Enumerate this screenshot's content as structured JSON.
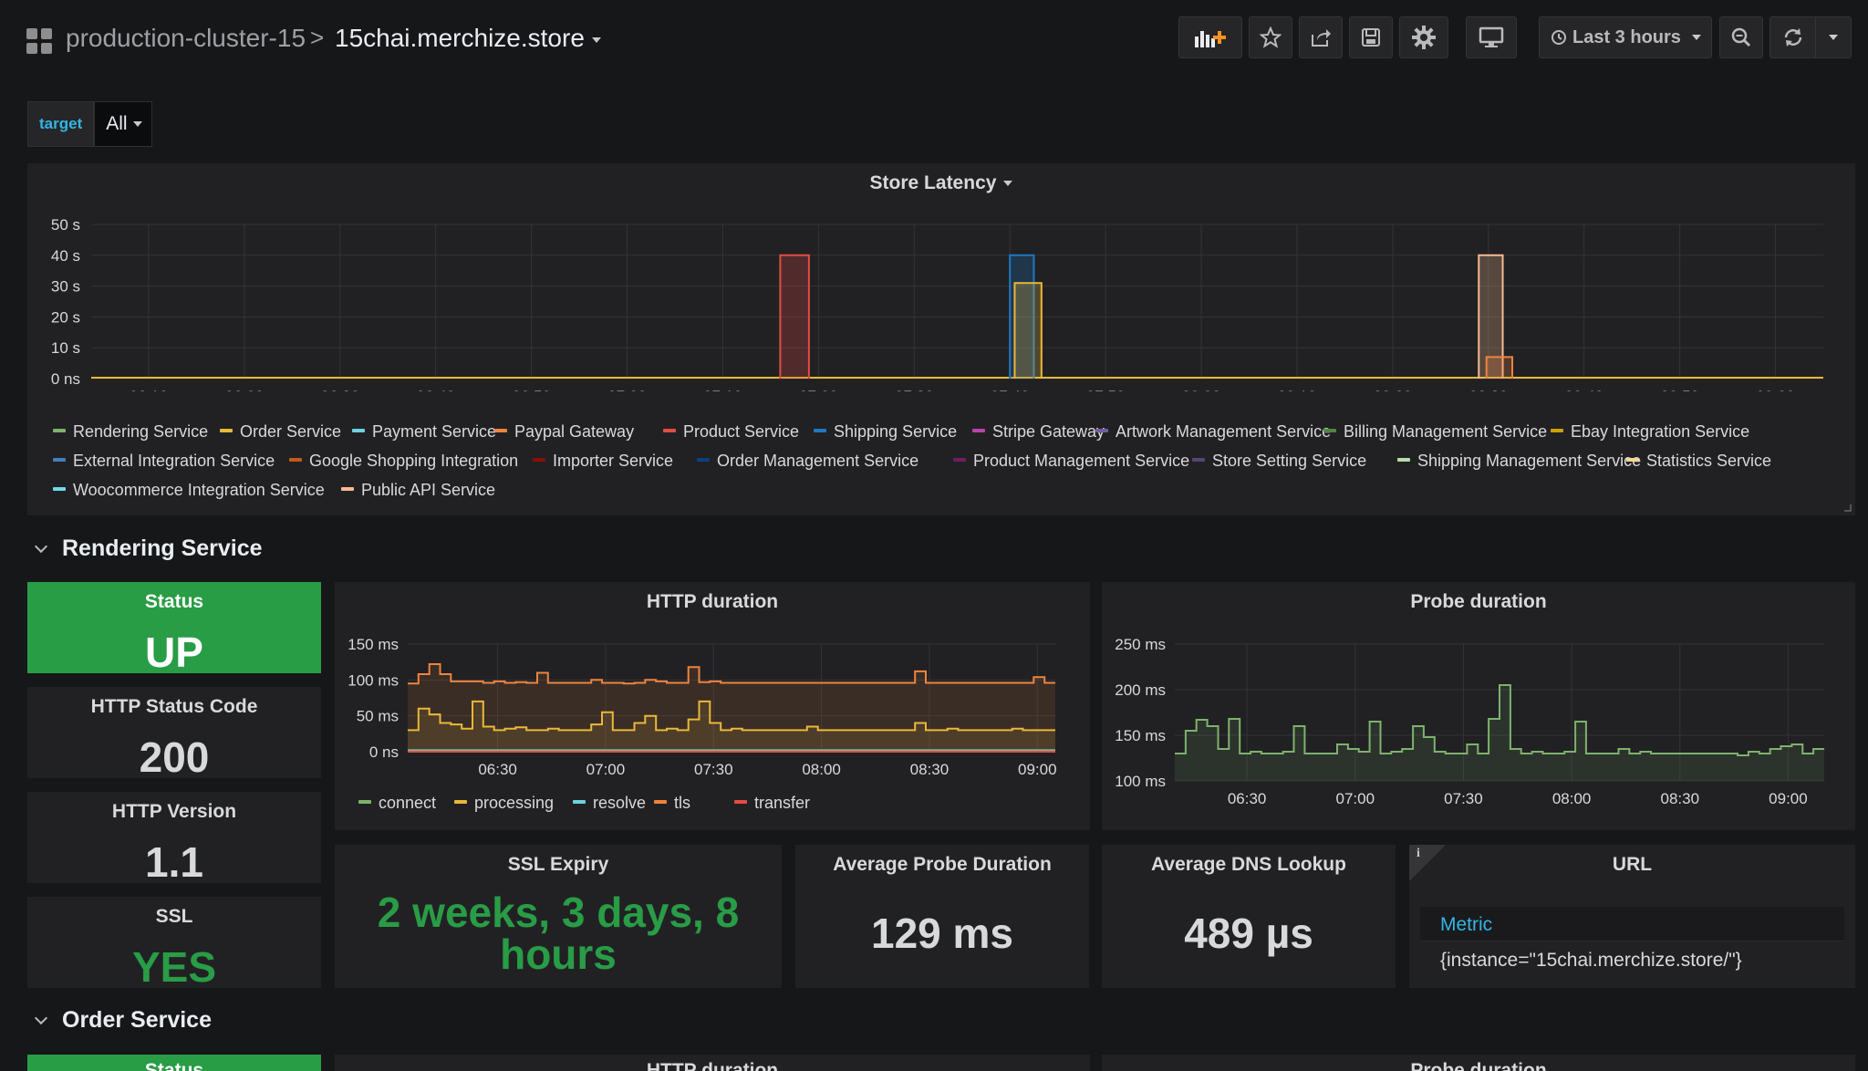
{
  "breadcrumb": {
    "folder": "production-cluster-15",
    "separator": ">",
    "dashboard": "15chai.merchize.store"
  },
  "toolbar": {
    "time_range": "Last 3 hours"
  },
  "variables": [
    {
      "label": "target",
      "value": "All"
    }
  ],
  "store_latency": {
    "title": "Store Latency",
    "legend": [
      "Rendering Service",
      "Order Service",
      "Payment Service",
      "Paypal Gateway",
      "Product Service",
      "Shipping Service",
      "Stripe Gateway",
      "Artwork Management Service",
      "Billing Management Service",
      "Ebay Integration Service",
      "External Integration Service",
      "Google Shopping Integration",
      "Importer Service",
      "Order Management Service",
      "Product Management Service",
      "Store Setting Service",
      "Shipping Management Service",
      "Statistics Service",
      "Woocommerce Integration Service",
      "Public API Service"
    ],
    "legend_colors": [
      "#7eb26d",
      "#eab839",
      "#6ed0e0",
      "#ef843c",
      "#e24d42",
      "#1f78c1",
      "#ba43a9",
      "#705da0",
      "#508642",
      "#cca300",
      "#447ebc",
      "#c15c17",
      "#890f02",
      "#0a437c",
      "#6d1f62",
      "#584477",
      "#b7dbab",
      "#f4d598",
      "#70dbed",
      "#f9ba8f"
    ]
  },
  "sections": [
    {
      "title": "Rendering Service",
      "status": {
        "title": "Status",
        "value": "UP"
      },
      "http_status": {
        "title": "HTTP Status Code",
        "value": "200"
      },
      "http_version": {
        "title": "HTTP Version",
        "value": "1.1"
      },
      "ssl": {
        "title": "SSL",
        "value": "YES"
      },
      "http_duration": {
        "title": "HTTP duration",
        "legend": [
          "connect",
          "processing",
          "resolve",
          "tls",
          "transfer"
        ],
        "legend_colors": [
          "#7eb26d",
          "#eab839",
          "#6ed0e0",
          "#ef843c",
          "#e24d42"
        ]
      },
      "probe_duration": {
        "title": "Probe duration"
      },
      "ssl_expiry": {
        "title": "SSL Expiry",
        "value_line1": "2 weeks, 3 days, 8",
        "value_line2": "hours"
      },
      "avg_probe": {
        "title": "Average Probe Duration",
        "value": "129 ms"
      },
      "avg_dns": {
        "title": "Average DNS Lookup",
        "value": "489 µs"
      },
      "url": {
        "title": "URL",
        "column": "Metric",
        "value": "{instance=\"15chai.merchize.store/\"}",
        "info": "i"
      }
    },
    {
      "title": "Order Service",
      "status": {
        "title": "Status"
      },
      "http_duration": {
        "title": "HTTP duration"
      },
      "probe_duration": {
        "title": "Probe duration"
      }
    }
  ],
  "chart_data": [
    {
      "type": "line",
      "title": "Store Latency",
      "ylabel": "",
      "ylim": [
        0,
        50
      ],
      "yticks": [
        "0 ns",
        "10 s",
        "20 s",
        "30 s",
        "40 s",
        "50 s"
      ],
      "xticks": [
        "06:10",
        "06:20",
        "06:30",
        "06:40",
        "06:50",
        "07:00",
        "07:10",
        "07:20",
        "07:30",
        "07:40",
        "07:50",
        "08:00",
        "08:10",
        "08:20",
        "08:30",
        "08:40",
        "08:50",
        "09:00"
      ],
      "series": [
        {
          "name": "Product Service",
          "x": [
            "07:16",
            "07:16",
            "07:19",
            "07:19"
          ],
          "values": [
            0,
            40,
            40,
            0
          ]
        },
        {
          "name": "Shipping Service",
          "x": [
            "07:40",
            "07:40",
            "07:42.5",
            "07:42.5"
          ],
          "values": [
            0,
            40,
            40,
            0
          ]
        },
        {
          "name": "Order Service",
          "x": [
            "07:40.5",
            "07:40.5",
            "07:43.3",
            "07:43.3"
          ],
          "values": [
            0,
            31,
            31,
            0
          ]
        },
        {
          "name": "Public API Service",
          "x": [
            "08:29",
            "08:29",
            "08:31.5",
            "08:31.5"
          ],
          "values": [
            0,
            40,
            40,
            0
          ]
        },
        {
          "name": "Paypal Gateway",
          "x": [
            "08:29.8",
            "08:29.8",
            "08:32.5",
            "08:32.5"
          ],
          "values": [
            0,
            7,
            7,
            0
          ]
        }
      ]
    },
    {
      "type": "area",
      "title": "HTTP duration",
      "ylim": [
        0,
        150
      ],
      "yticks": [
        "0 ns",
        "50 ms",
        "100 ms",
        "150 ms"
      ],
      "xticks": [
        "06:30",
        "07:00",
        "07:30",
        "08:00",
        "08:30",
        "09:00"
      ],
      "x_range": [
        "06:05",
        "09:05"
      ],
      "series": [
        {
          "name": "connect",
          "values": [
            1,
            1,
            1,
            1,
            1,
            1,
            1,
            1,
            1,
            1,
            1,
            1,
            1,
            1,
            1,
            1,
            1,
            1,
            1,
            1,
            1,
            1,
            1,
            1,
            1,
            1,
            1,
            1,
            1,
            1,
            1,
            1,
            1,
            1,
            1,
            1,
            1,
            1,
            1,
            1,
            1,
            1,
            1,
            1,
            1,
            1,
            1,
            1,
            1,
            1,
            1,
            1,
            1,
            1,
            1,
            1,
            1,
            1,
            1,
            1
          ]
        },
        {
          "name": "processing",
          "values": [
            30,
            60,
            52,
            40,
            38,
            32,
            70,
            35,
            30,
            32,
            34,
            30,
            30,
            32,
            30,
            30,
            30,
            38,
            55,
            30,
            30,
            40,
            50,
            30,
            32,
            30,
            45,
            70,
            40,
            30,
            32,
            30,
            30,
            30,
            30,
            30,
            30,
            35,
            30,
            30,
            30,
            30,
            30,
            30,
            30,
            30,
            30,
            40,
            30,
            30,
            32,
            30,
            30,
            30,
            30,
            30,
            32,
            30,
            30,
            30
          ]
        },
        {
          "name": "resolve",
          "values": [
            2,
            2,
            2,
            2,
            2,
            2,
            2,
            2,
            2,
            2,
            2,
            2,
            2,
            2,
            2,
            2,
            2,
            2,
            2,
            2,
            2,
            2,
            2,
            2,
            2,
            2,
            2,
            2,
            2,
            2,
            2,
            2,
            2,
            2,
            2,
            2,
            2,
            2,
            2,
            2,
            2,
            2,
            2,
            2,
            2,
            2,
            2,
            2,
            2,
            2,
            2,
            2,
            2,
            2,
            2,
            2,
            2,
            2,
            2,
            2
          ]
        },
        {
          "name": "tls",
          "values": [
            95,
            108,
            122,
            108,
            98,
            98,
            98,
            96,
            98,
            96,
            97,
            96,
            110,
            96,
            96,
            96,
            96,
            100,
            96,
            96,
            95,
            96,
            100,
            98,
            96,
            96,
            118,
            97,
            98,
            96,
            96,
            96,
            96,
            96,
            96,
            96,
            96,
            96,
            96,
            96,
            96,
            96,
            96,
            96,
            96,
            96,
            96,
            112,
            96,
            96,
            96,
            96,
            96,
            96,
            96,
            96,
            96,
            96,
            104,
            96
          ]
        },
        {
          "name": "transfer",
          "values": [
            0,
            0,
            0,
            0,
            0,
            0,
            0,
            0,
            0,
            0,
            0,
            0,
            0,
            0,
            0,
            0,
            0,
            0,
            0,
            0,
            0,
            0,
            0,
            0,
            0,
            0,
            0,
            0,
            0,
            0,
            0,
            0,
            0,
            0,
            0,
            0,
            0,
            0,
            0,
            0,
            0,
            0,
            0,
            0,
            0,
            0,
            0,
            0,
            0,
            0,
            0,
            0,
            0,
            0,
            0,
            0,
            0,
            0,
            0,
            0
          ]
        }
      ]
    },
    {
      "type": "line",
      "title": "Probe duration",
      "ylim": [
        100,
        250
      ],
      "yticks": [
        "100 ms",
        "150 ms",
        "200 ms",
        "250 ms"
      ],
      "xticks": [
        "06:30",
        "07:00",
        "07:30",
        "08:00",
        "08:30",
        "09:00"
      ],
      "x_range": [
        "06:10",
        "09:10"
      ],
      "series": [
        {
          "name": "",
          "values": [
            130,
            155,
            167,
            160,
            135,
            168,
            130,
            132,
            130,
            130,
            132,
            160,
            130,
            130,
            130,
            140,
            135,
            132,
            165,
            130,
            132,
            135,
            160,
            148,
            132,
            130,
            130,
            140,
            130,
            168,
            205,
            135,
            130,
            132,
            130,
            130,
            132,
            165,
            130,
            130,
            130,
            135,
            130,
            132,
            130,
            130,
            130,
            130,
            130,
            130,
            130,
            130,
            128,
            132,
            130,
            135,
            138,
            140,
            130,
            135
          ]
        }
      ]
    }
  ]
}
